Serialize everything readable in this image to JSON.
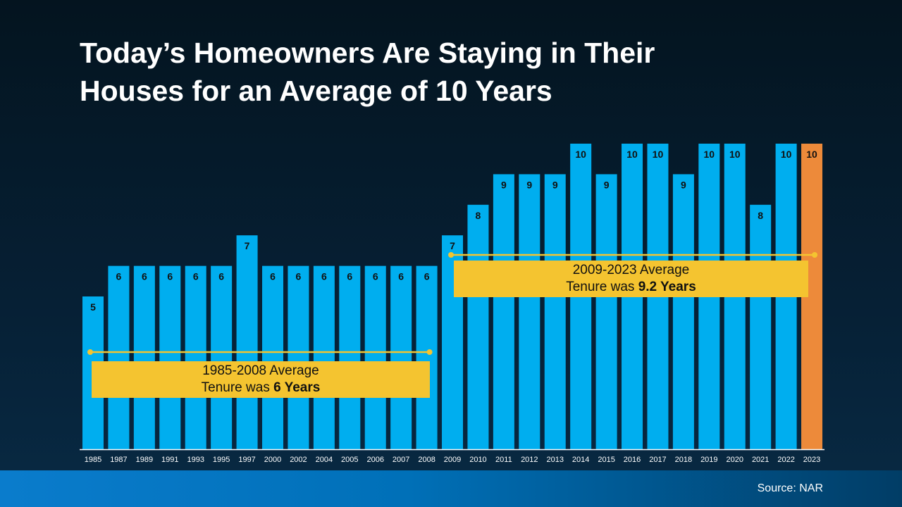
{
  "title_line1": "Today’s Homeowners Are Staying in Their",
  "title_line2": "Houses for an Average of 10 Years",
  "source": "Source: NAR",
  "colors": {
    "bar": "#00aeef",
    "highlight_bar": "#ed8a3a",
    "average": "#f4c430",
    "label": "#111111",
    "axis": "#ffffff"
  },
  "chart_data": {
    "type": "bar",
    "title": "Today’s Homeowners Are Staying in Their Houses for an Average of 10 Years",
    "categories": [
      "1985",
      "1987",
      "1989",
      "1991",
      "1993",
      "1995",
      "1997",
      "2000",
      "2002",
      "2004",
      "2005",
      "2006",
      "2007",
      "2008",
      "2009",
      "2010",
      "2011",
      "2012",
      "2013",
      "2014",
      "2015",
      "2016",
      "2017",
      "2018",
      "2019",
      "2020",
      "2021",
      "2022",
      "2023"
    ],
    "values": [
      5,
      6,
      6,
      6,
      6,
      6,
      7,
      6,
      6,
      6,
      6,
      6,
      6,
      6,
      7,
      8,
      9,
      9,
      9,
      10,
      9,
      10,
      10,
      9,
      10,
      10,
      8,
      10,
      10
    ],
    "highlight": "2023",
    "ylim": [
      0,
      10
    ],
    "grid": false,
    "annotations": [
      {
        "range": [
          "1985",
          "2008"
        ],
        "line1": "1985-2008 Average",
        "line2_prefix": "Tenure was ",
        "line2_bold": "6 Years"
      },
      {
        "range": [
          "2009",
          "2023"
        ],
        "line1": "2009-2023 Average",
        "line2_prefix": "Tenure was ",
        "line2_bold": "9.2 Years"
      }
    ]
  }
}
